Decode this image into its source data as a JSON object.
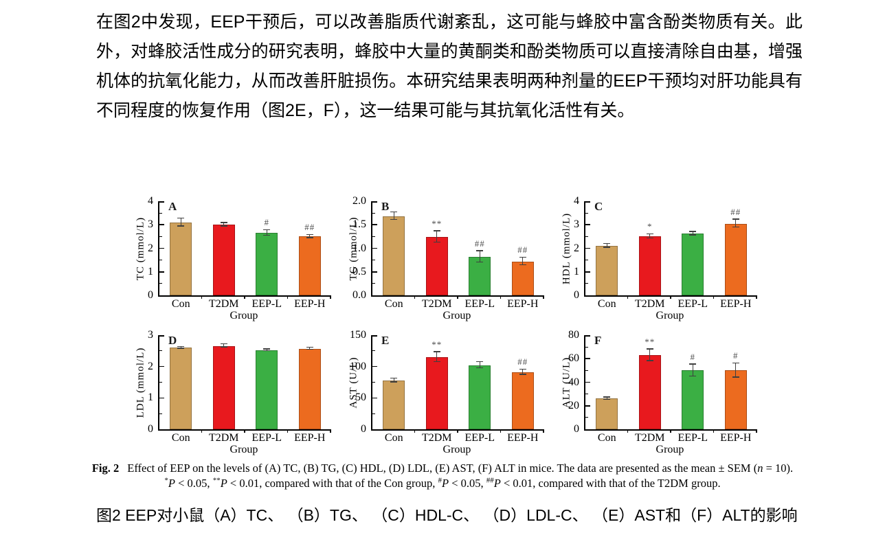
{
  "page": {
    "paragraph": "在图2中发现，EEP干预后，可以改善脂质代谢紊乱，这可能与蜂胶中富含酚类物质有关。此外，对蜂胶活性成分的研究表明，蜂胶中大量的黄酮类和酚类物质可以直接清除自由基，增强机体的抗氧化能力，从而改善肝脏损伤。本研究结果表明两种剂量的EEP干预均对肝功能具有不同程度的恢复作用（图2E，F），这一结果可能与其抗氧化活性有关。"
  },
  "figure": {
    "caption_en": {
      "fig_label": "Fig. 2",
      "line1_text": "Effect of EEP on the levels of (A) TC, (B) TG, (C) HDL, (D) LDL, (E) AST, (F) ALT in mice. The data are presented as the mean ± SEM (",
      "line1_n": "n",
      "line1_end": " = 10).",
      "line2_segments": [
        {
          "style": "sup",
          "text": "*"
        },
        {
          "style": "i",
          "text": "P"
        },
        {
          "style": "t",
          "text": " < 0.05, "
        },
        {
          "style": "sup",
          "text": "**"
        },
        {
          "style": "i",
          "text": "P"
        },
        {
          "style": "t",
          "text": " < 0.01, compared with that of the Con group, "
        },
        {
          "style": "sup",
          "text": "#"
        },
        {
          "style": "i",
          "text": "P"
        },
        {
          "style": "t",
          "text": " < 0.05, "
        },
        {
          "style": "sup",
          "text": "##"
        },
        {
          "style": "i",
          "text": "P"
        },
        {
          "style": "t",
          "text": " < 0.01, compared with that of the T2DM group."
        }
      ]
    },
    "caption_zh": "图2 EEP对小鼠（A）TC、 （B）TG、 （C）HDL-C、 （D）LDL-C、 （E）AST和（F）ALT的影响"
  },
  "bar_colors": [
    "#CDA05B",
    "#E8191E",
    "#3BAF44",
    "#EC6B1F"
  ],
  "chart_data": [
    {
      "type": "bar",
      "panel": "A",
      "ylabel": "TC (mmol/L)",
      "xlabel": "Group",
      "ylim": [
        0,
        4
      ],
      "yticks": [
        "0",
        "1",
        "2",
        "3",
        "4"
      ],
      "categories": [
        "Con",
        "T2DM",
        "EEP-L",
        "EEP-H"
      ],
      "values": [
        3.1,
        3.0,
        2.65,
        2.5
      ],
      "errors": [
        0.17,
        0.07,
        0.12,
        0.07
      ],
      "markers": [
        "",
        "",
        "#",
        "##"
      ]
    },
    {
      "type": "bar",
      "panel": "B",
      "ylabel": "TG (mmol/L)",
      "xlabel": "Group",
      "ylim": [
        0,
        2
      ],
      "yticks": [
        "0.0",
        "0.5",
        "1.0",
        "1.5",
        "2.0"
      ],
      "categories": [
        "Con",
        "T2DM",
        "EEP-L",
        "EEP-H"
      ],
      "values": [
        1.68,
        1.24,
        0.82,
        0.72
      ],
      "errors": [
        0.08,
        0.12,
        0.12,
        0.08
      ],
      "markers": [
        "",
        "**",
        "##",
        "##"
      ]
    },
    {
      "type": "bar",
      "panel": "C",
      "ylabel": "HDL (mmol/L)",
      "xlabel": "Group",
      "ylim": [
        0,
        4
      ],
      "yticks": [
        "0",
        "1",
        "2",
        "3",
        "4"
      ],
      "categories": [
        "Con",
        "T2DM",
        "EEP-L",
        "EEP-H"
      ],
      "values": [
        2.1,
        2.5,
        2.62,
        3.05
      ],
      "errors": [
        0.08,
        0.09,
        0.07,
        0.17
      ],
      "markers": [
        "",
        "*",
        "",
        "##"
      ]
    },
    {
      "type": "bar",
      "panel": "D",
      "ylabel": "LDL (mmol/L)",
      "xlabel": "Group",
      "ylim": [
        0,
        3
      ],
      "yticks": [
        "0",
        "1",
        "2",
        "3"
      ],
      "categories": [
        "Con",
        "T2DM",
        "EEP-L",
        "EEP-H"
      ],
      "values": [
        2.6,
        2.66,
        2.52,
        2.57
      ],
      "errors": [
        0.03,
        0.05,
        0.03,
        0.03
      ],
      "markers": [
        "",
        "",
        "",
        ""
      ]
    },
    {
      "type": "bar",
      "panel": "E",
      "ylabel": "AST (U/L)",
      "xlabel": "Group",
      "ylim": [
        0,
        150
      ],
      "yticks": [
        "0",
        "50",
        "100",
        "150"
      ],
      "categories": [
        "Con",
        "T2DM",
        "EEP-L",
        "EEP-H"
      ],
      "values": [
        78,
        115,
        102,
        91
      ],
      "errors": [
        3,
        8,
        5,
        4
      ],
      "markers": [
        "",
        "**",
        "",
        "##"
      ]
    },
    {
      "type": "bar",
      "panel": "F",
      "ylabel": "ALT (U/L)",
      "xlabel": "Group",
      "ylim": [
        0,
        80
      ],
      "yticks": [
        "0",
        "20",
        "40",
        "60",
        "80"
      ],
      "categories": [
        "Con",
        "T2DM",
        "EEP-L",
        "EEP-H"
      ],
      "values": [
        26,
        63,
        50,
        50
      ],
      "errors": [
        1,
        5,
        5,
        6
      ],
      "markers": [
        "",
        "**",
        "#",
        "#"
      ]
    }
  ]
}
